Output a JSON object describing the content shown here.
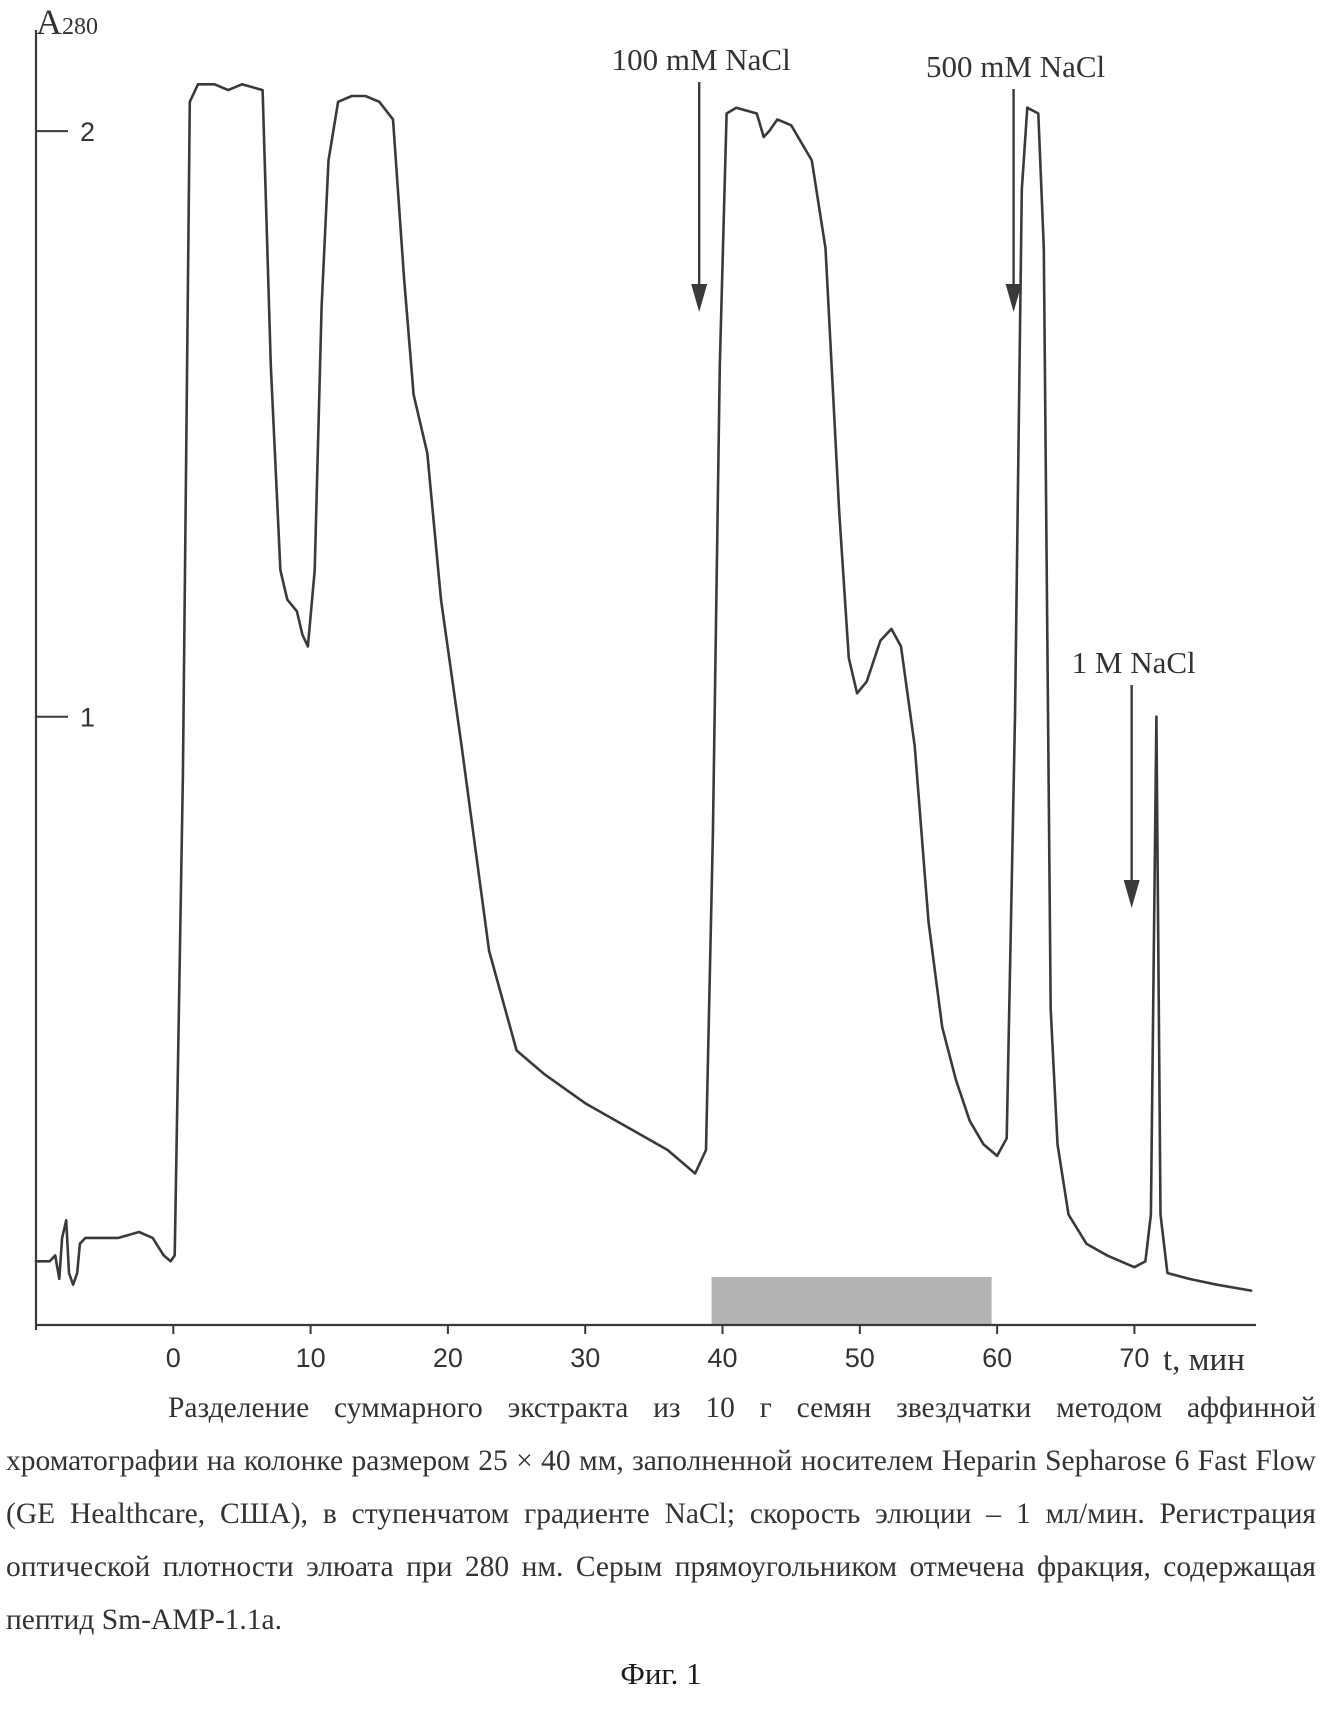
{
  "chart_data": {
    "type": "line",
    "xlabel": "t, мин",
    "ylabel_main": "A",
    "ylabel_sub": "280",
    "xlim": [
      -10,
      79
    ],
    "ylim": [
      -0.02,
      2.2
    ],
    "xticks": [
      0,
      10,
      20,
      30,
      40,
      50,
      60,
      70
    ],
    "yticks": [
      1,
      2
    ],
    "series": [
      {
        "points": [
          [
            -10,
            0.07
          ],
          [
            -9,
            0.07
          ],
          [
            -8.6,
            0.08
          ],
          [
            -8.3,
            0.04
          ],
          [
            -8.1,
            0.11
          ],
          [
            -7.8,
            0.14
          ],
          [
            -7.6,
            0.05
          ],
          [
            -7.3,
            0.03
          ],
          [
            -7.0,
            0.05
          ],
          [
            -6.8,
            0.1
          ],
          [
            -6.4,
            0.11
          ],
          [
            -5.5,
            0.11
          ],
          [
            -4,
            0.11
          ],
          [
            -2.5,
            0.12
          ],
          [
            -1.5,
            0.11
          ],
          [
            -0.7,
            0.08
          ],
          [
            -0.2,
            0.07
          ],
          [
            0.1,
            0.08
          ],
          [
            0.7,
            0.9
          ],
          [
            1.2,
            2.05
          ],
          [
            1.8,
            2.08
          ],
          [
            3,
            2.08
          ],
          [
            4,
            2.07
          ],
          [
            5,
            2.08
          ],
          [
            6.5,
            2.07
          ],
          [
            7.1,
            1.6
          ],
          [
            7.8,
            1.25
          ],
          [
            8.3,
            1.2
          ],
          [
            9.0,
            1.18
          ],
          [
            9.4,
            1.14
          ],
          [
            9.8,
            1.12
          ],
          [
            10.3,
            1.25
          ],
          [
            10.8,
            1.7
          ],
          [
            11.3,
            1.95
          ],
          [
            12,
            2.05
          ],
          [
            13,
            2.06
          ],
          [
            14,
            2.06
          ],
          [
            15,
            2.05
          ],
          [
            16,
            2.02
          ],
          [
            16.8,
            1.75
          ],
          [
            17.5,
            1.55
          ],
          [
            18.5,
            1.45
          ],
          [
            19.5,
            1.2
          ],
          [
            21,
            0.95
          ],
          [
            23,
            0.6
          ],
          [
            25,
            0.43
          ],
          [
            27,
            0.39
          ],
          [
            30,
            0.34
          ],
          [
            33,
            0.3
          ],
          [
            36,
            0.26
          ],
          [
            38,
            0.22
          ],
          [
            38.8,
            0.26
          ],
          [
            39.3,
            0.8
          ],
          [
            39.8,
            1.6
          ],
          [
            40.3,
            2.03
          ],
          [
            41,
            2.04
          ],
          [
            42.5,
            2.03
          ],
          [
            43,
            1.99
          ],
          [
            43.4,
            2.0
          ],
          [
            44,
            2.02
          ],
          [
            45,
            2.01
          ],
          [
            46.5,
            1.95
          ],
          [
            47.5,
            1.8
          ],
          [
            48.5,
            1.35
          ],
          [
            49.2,
            1.1
          ],
          [
            49.8,
            1.04
          ],
          [
            50.5,
            1.06
          ],
          [
            51.5,
            1.13
          ],
          [
            52.3,
            1.15
          ],
          [
            53,
            1.12
          ],
          [
            54,
            0.95
          ],
          [
            55,
            0.65
          ],
          [
            56,
            0.47
          ],
          [
            57,
            0.38
          ],
          [
            58,
            0.31
          ],
          [
            59,
            0.27
          ],
          [
            60,
            0.25
          ],
          [
            60.7,
            0.28
          ],
          [
            61.3,
            1.0
          ],
          [
            61.8,
            1.9
          ],
          [
            62.2,
            2.04
          ],
          [
            63,
            2.03
          ],
          [
            63.4,
            1.8
          ],
          [
            63.9,
            0.5
          ],
          [
            64.4,
            0.27
          ],
          [
            65.2,
            0.15
          ],
          [
            66.5,
            0.1
          ],
          [
            68,
            0.08
          ],
          [
            70,
            0.06
          ],
          [
            70.8,
            0.07
          ],
          [
            71.2,
            0.15
          ],
          [
            71.6,
            1.0
          ],
          [
            71.9,
            0.15
          ],
          [
            72.4,
            0.05
          ],
          [
            74,
            0.04
          ],
          [
            76,
            0.03
          ],
          [
            78.5,
            0.02
          ]
        ]
      }
    ],
    "annotations": [
      {
        "text": "100 mM NaCl",
        "x": 38.3
      },
      {
        "text": "500 mM NaCl",
        "x": 61.2
      },
      {
        "text": "1 M NaCl",
        "x": 69.8
      }
    ],
    "highlight": {
      "x_start": 39.2,
      "x_end": 59.6,
      "color": "#b4b4b4"
    }
  },
  "caption": "Разделение суммарного экстракта из 10 г семян звездчатки методом аффинной хроматографии на колонке размером 25 × 40 мм, заполненной носителем Heparin Sepharose 6 Fast Flow (GE Healthcare, США), в ступенчатом градиенте NaCl; скорость элюции – 1 мл/мин. Регистрация оптической плотности элюата при 280 нм. Серым прямоугольником отмечена фракция, содержащая пептид Sm-AMP-1.1a.",
  "figure_label": "Фиг. 1"
}
